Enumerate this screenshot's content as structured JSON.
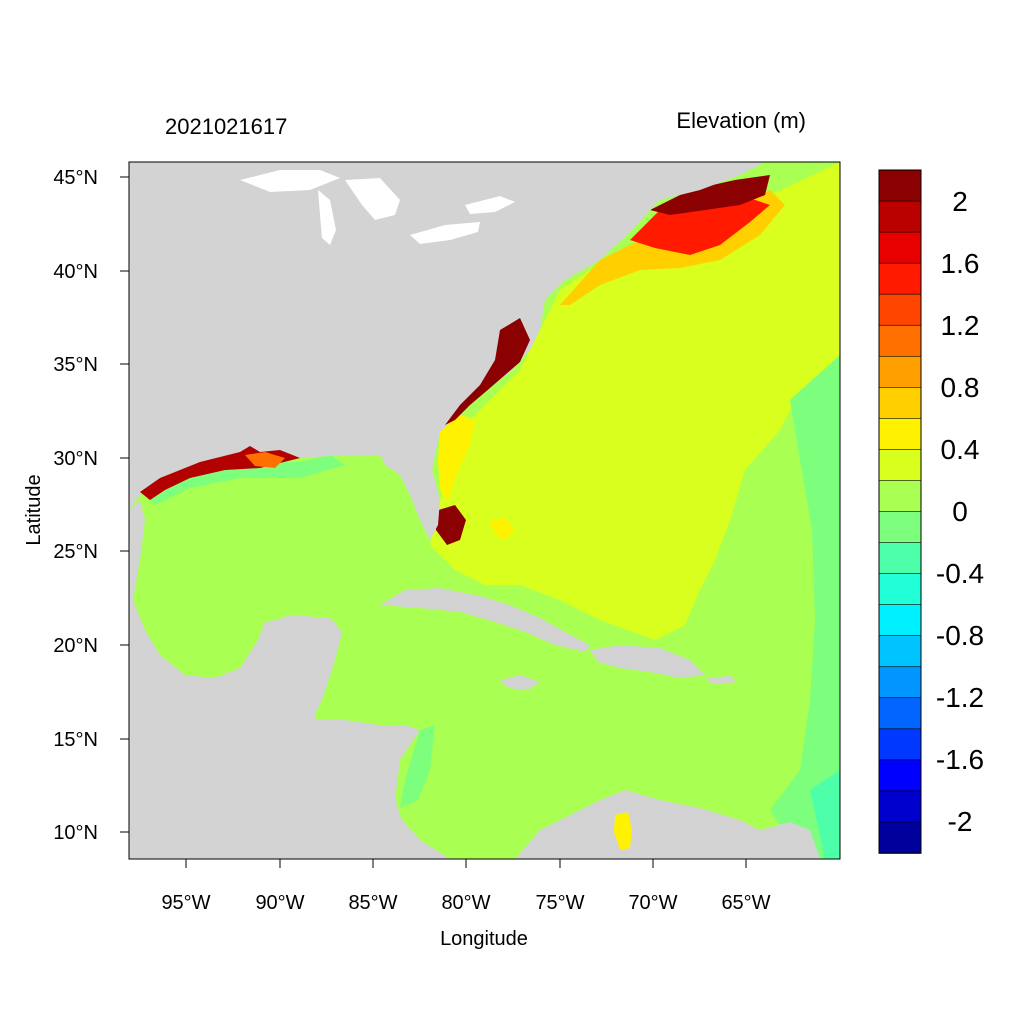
{
  "timestamp": "2021021617",
  "colorbar": {
    "title": "Elevation (m)",
    "levels": [
      {
        "color": "#8B0000"
      },
      {
        "color": "#BB0000"
      },
      {
        "color": "#E80000"
      },
      {
        "color": "#FF1A00"
      },
      {
        "color": "#FF4500"
      },
      {
        "color": "#FF7000"
      },
      {
        "color": "#FF9F00"
      },
      {
        "color": "#FFCF00"
      },
      {
        "color": "#FFF200"
      },
      {
        "color": "#D9FF1F"
      },
      {
        "color": "#A9FF52"
      },
      {
        "color": "#7DFF7D"
      },
      {
        "color": "#4DFFA9"
      },
      {
        "color": "#20FFD6"
      },
      {
        "color": "#00F0FF"
      },
      {
        "color": "#00C4FF"
      },
      {
        "color": "#0095FF"
      },
      {
        "color": "#0066FF"
      },
      {
        "color": "#0038FF"
      },
      {
        "color": "#0000FF"
      },
      {
        "color": "#0000CC"
      },
      {
        "color": "#00009C"
      }
    ],
    "tick_labels": [
      "2",
      "1.6",
      "1.2",
      "0.8",
      "0.4",
      "0",
      "-0.4",
      "-0.8",
      "-1.2",
      "-1.6",
      "-2"
    ]
  },
  "axes": {
    "xlabel": "Longitude",
    "ylabel": "Latitude",
    "x_ticks": [
      "95°W",
      "90°W",
      "85°W",
      "80°W",
      "75°W",
      "70°W",
      "65°W"
    ],
    "y_ticks": [
      "45°N",
      "40°N",
      "35°N",
      "30°N",
      "25°N",
      "20°N",
      "15°N",
      "10°N"
    ]
  },
  "colors": {
    "land": "#D3D3D3",
    "lakes": "#FFFFFF",
    "ocean_zero": "#A9FF52",
    "ocean_low": "#D9FF1F"
  }
}
